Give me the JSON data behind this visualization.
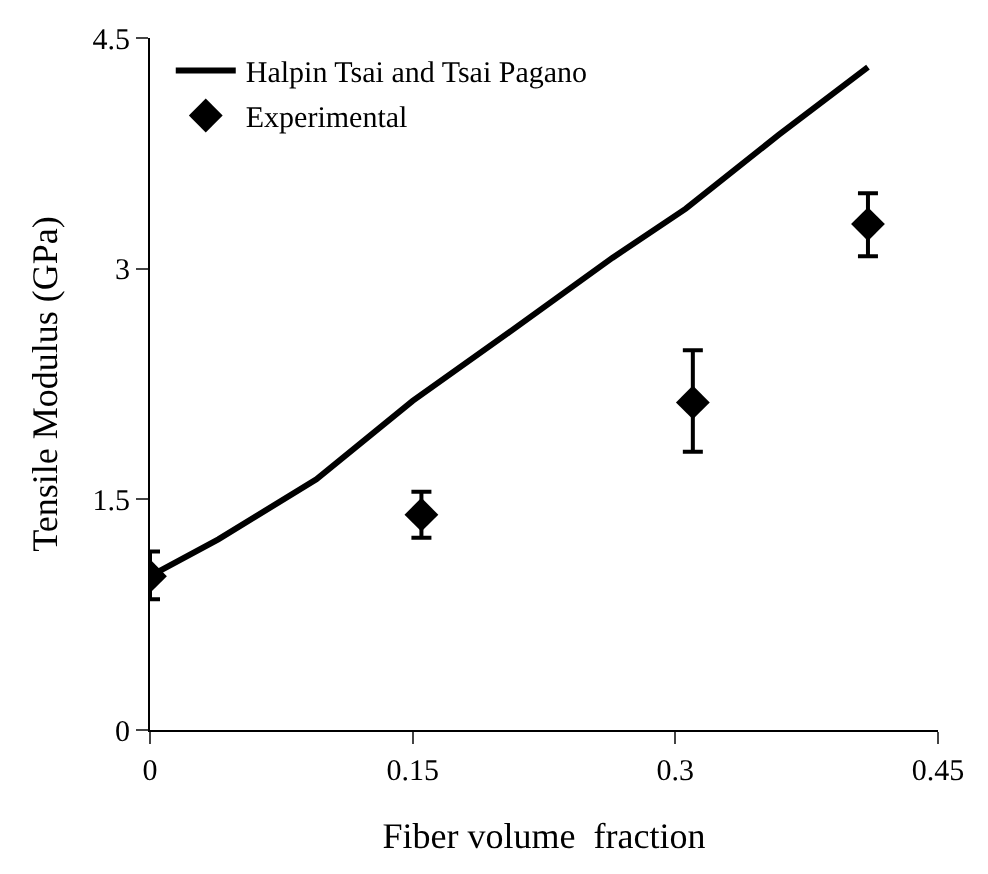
{
  "chart_data": {
    "type": "scatter",
    "xlabel": "Fiber volume  fraction",
    "ylabel": "Tensile Modulus (GPa)",
    "xlim": [
      0,
      0.45
    ],
    "xticks": [
      0,
      0.15,
      0.3,
      0.45
    ],
    "ylim": [
      0,
      4.5
    ],
    "yticks": [
      0,
      1.5,
      3,
      4.5
    ],
    "legend": "top left",
    "series": [
      {
        "name": "Halpin Tsai and Tsai Pagano",
        "type": "line",
        "color": "#000000",
        "marker": "none",
        "line_style": "solid",
        "x": [
          0,
          0.039,
          0.095,
          0.15,
          0.208,
          0.264,
          0.306,
          0.359,
          0.41
        ],
        "values": [
          1.0,
          1.24,
          1.63,
          2.14,
          2.61,
          3.07,
          3.39,
          3.87,
          4.31
        ]
      },
      {
        "name": "Experimental",
        "color": "#000000",
        "marker": "diamond",
        "x": [
          0,
          0.155,
          0.31,
          0.41
        ],
        "values": [
          1.0,
          1.4,
          2.13,
          3.29
        ],
        "errors": [
          [
            0.85,
            1.16
          ],
          [
            1.25,
            1.55
          ],
          [
            1.81,
            2.47
          ],
          [
            3.08,
            3.49
          ]
        ]
      }
    ]
  }
}
